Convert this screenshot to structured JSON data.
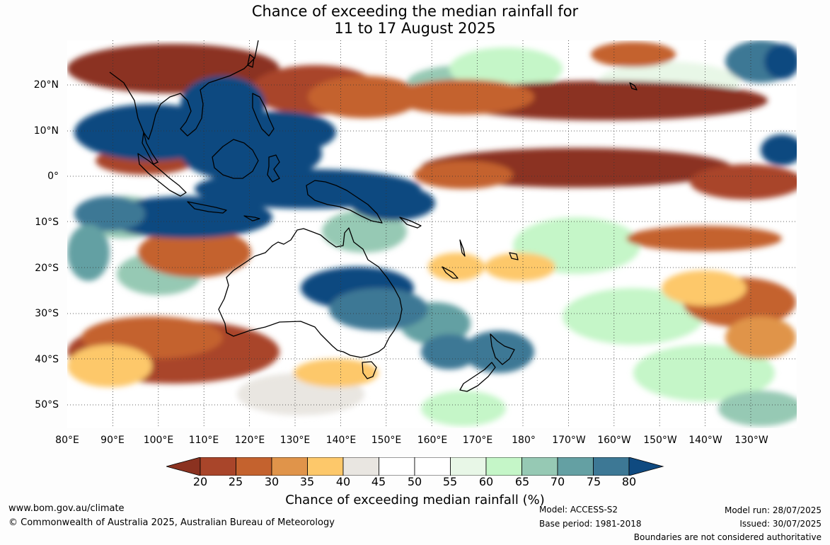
{
  "title": {
    "line1": "Chance of exceeding the median rainfall for",
    "line2": "11 to 17 August 2025"
  },
  "lat_labels": [
    "20°N",
    "10°N",
    "0°",
    "10°S",
    "20°S",
    "30°S",
    "40°S",
    "50°S"
  ],
  "lon_labels": [
    "80°E",
    "90°E",
    "100°E",
    "110°E",
    "120°E",
    "130°E",
    "140°E",
    "150°E",
    "160°E",
    "170°E",
    "180°",
    "170°W",
    "160°W",
    "150°W",
    "140°W",
    "130°W"
  ],
  "colorbar": {
    "ticks": [
      "20",
      "25",
      "30",
      "35",
      "40",
      "45",
      "50",
      "55",
      "60",
      "65",
      "70",
      "75",
      "80"
    ],
    "colors": [
      "#8b3220",
      "#a9452a",
      "#c4622e",
      "#e0944a",
      "#fdc86a",
      "#e9e6e1",
      "#ffffff",
      "#ffffff",
      "#e8f7e7",
      "#c5f6c8",
      "#96c9b4",
      "#64a0a3",
      "#3d7895",
      "#0f4a80"
    ],
    "title": "Chance of exceeding median rainfall (%)"
  },
  "footer": {
    "website": "www.bom.gov.au/climate",
    "copyright": "© Commonwealth of Australia 2025, Australian Bureau of Meteorology",
    "model": "Model: ACCESS-S2",
    "base_period": "Base period: 1981-2018",
    "model_run": "Model run: 28/07/2025",
    "issued": "Issued: 30/07/2025",
    "disclaimer": "Boundaries are not considered authoritative"
  }
}
